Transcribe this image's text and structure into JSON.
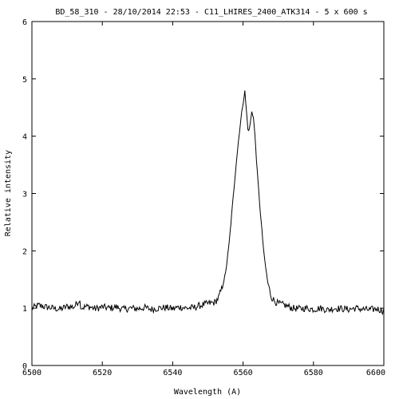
{
  "chart_data": {
    "type": "line",
    "title": "BD_58_310 - 28/10/2014 22:53 - C11_LHIRES_2400_ATK314 - 5 x 600 s",
    "xlabel": "Wavelength (A)",
    "ylabel": "Relative intensity",
    "xlim": [
      6500,
      6600
    ],
    "ylim": [
      0,
      6
    ],
    "xticks": [
      "6500",
      "6520",
      "6540",
      "6560",
      "6580",
      "6600"
    ],
    "yticks": [
      "0",
      "1",
      "2",
      "3",
      "4",
      "5",
      "6"
    ],
    "grid": false,
    "series": [
      {
        "x": [
          6500,
          6502,
          6504,
          6506,
          6508,
          6510,
          6512,
          6513.5,
          6514,
          6516,
          6518,
          6520,
          6522,
          6524,
          6526,
          6528,
          6530,
          6532,
          6534,
          6536,
          6538,
          6540,
          6542,
          6544,
          6546,
          6548,
          6550,
          6552,
          6553,
          6554,
          6555,
          6556,
          6557,
          6558,
          6559,
          6559.8,
          6560.5,
          6561,
          6561.5,
          6562,
          6562.5,
          6563,
          6563.5,
          6564,
          6565,
          6566,
          6567,
          6568,
          6569,
          6570,
          6572,
          6574,
          6576,
          6578,
          6580,
          6582,
          6584,
          6586,
          6588,
          6590,
          6592,
          6594,
          6596,
          6598,
          6600
        ],
        "y": [
          1.0,
          1.05,
          1.02,
          1.0,
          0.98,
          1.03,
          1.02,
          1.15,
          1.01,
          1.03,
          0.99,
          1.02,
          1.0,
          1.02,
          0.98,
          1.0,
          0.99,
          1.01,
          0.98,
          1.0,
          1.01,
          0.99,
          1.02,
          1.0,
          1.01,
          1.05,
          1.08,
          1.1,
          1.18,
          1.35,
          1.6,
          2.1,
          2.8,
          3.5,
          4.1,
          4.5,
          4.78,
          4.4,
          4.05,
          4.2,
          4.45,
          4.3,
          3.9,
          3.4,
          2.6,
          1.9,
          1.45,
          1.2,
          1.12,
          1.08,
          1.05,
          1.0,
          0.99,
          1.0,
          0.98,
          1.0,
          0.97,
          1.0,
          0.99,
          0.98,
          1.0,
          0.98,
          0.97,
          0.99,
          0.95
        ]
      }
    ]
  }
}
